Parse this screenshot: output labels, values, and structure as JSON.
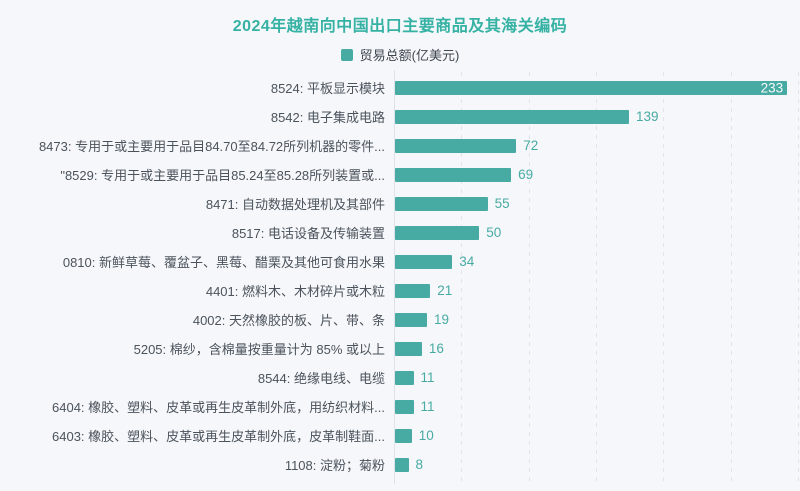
{
  "title": "2024年越南向中国出口主要商品及其海关编码",
  "legend": {
    "label": "贸易总额(亿美元)"
  },
  "colors": {
    "background": "#f6f7fa",
    "bar": "#48aba3",
    "title": "#35b2a4",
    "value_label": "#48aba3",
    "value_label_inside": "#f6f9f9",
    "category_label": "#4b535c",
    "legend_text": "#3e4650",
    "gridline": "#e2e4ec",
    "axis": "#dee1e8"
  },
  "chart_data": {
    "type": "bar",
    "orientation": "horizontal",
    "title": "2024年越南向中国出口主要商品及其海关编码",
    "legend": [
      "贸易总额(亿美元)"
    ],
    "categories": [
      "8524: 平板显示模块",
      "8542: 电子集成电路",
      "8473: 专用于或主要用于品目84.70至84.72所列机器的零件...",
      "\"8529: 专用于或主要用于品目85.24至85.28所列装置或...",
      "8471: 自动数据处理机及其部件",
      "8517: 电话设备及传输装置",
      "0810: 新鲜草莓、覆盆子、黑莓、醋栗及其他可食用水果",
      "4401: 燃料木、木材碎片或木粒",
      "4002: 天然橡胶的板、片、带、条",
      "5205: 棉纱，含棉量按重量计为 85% 或以上",
      "8544: 绝缘电线、电缆",
      "6404: 橡胶、塑料、皮革或再生皮革制外底，用纺织材料...",
      "6403: 橡胶、塑料、皮革或再生皮革制外底，皮革制鞋面...",
      "1108: 淀粉；菊粉"
    ],
    "values": [
      233,
      139,
      72,
      69,
      55,
      50,
      34,
      21,
      19,
      16,
      11,
      11,
      10,
      8
    ],
    "xlabel": "",
    "ylabel": "",
    "xlim": [
      0,
      240
    ],
    "gridline_interval": 40,
    "grid": "dashed-vertical",
    "legend_position": "top-center",
    "value_labels": "end-of-bar"
  }
}
